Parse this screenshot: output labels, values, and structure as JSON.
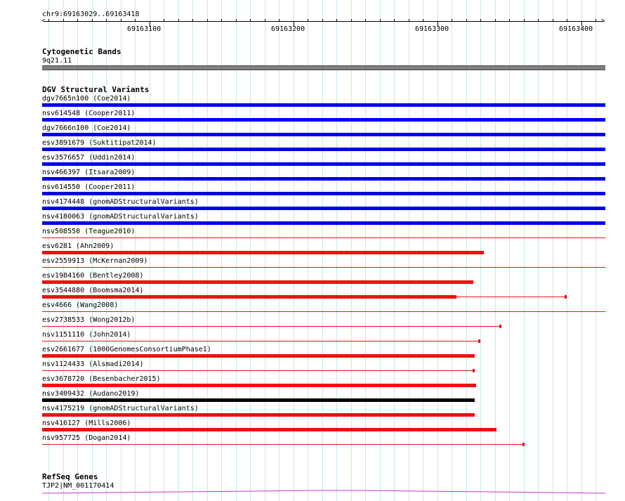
{
  "ruler": {
    "position": "chr9:69163029..69163418",
    "ticks": [
      "69163100",
      "69163200",
      "69163300",
      "69163400"
    ]
  },
  "tracks": {
    "cytobands": {
      "title": "Cytogenetic Bands",
      "band": "9q21.11",
      "color": "#808080"
    },
    "dgv": {
      "title": "DGV Structural Variants",
      "colors": {
        "gain": "#0000e6",
        "loss": "#ee1111",
        "complex": "#000000"
      },
      "features": [
        {
          "label": "dgv7665n100 (Coe2014)",
          "color": "#0000e6"
        },
        {
          "label": "nsv614548 (Cooper2011)",
          "color": "#0000e6"
        },
        {
          "label": "dgv7666n100 (Coe2014)",
          "color": "#0000e6"
        },
        {
          "label": "esv3891679 (Suktitipat2014)",
          "color": "#0000e6"
        },
        {
          "label": "esv3576657 (Uddin2014)",
          "color": "#0000e6"
        },
        {
          "label": "nsv466397 (Itsara2009)",
          "color": "#0000e6"
        },
        {
          "label": "nsv614550 (Cooper2011)",
          "color": "#0000e6"
        },
        {
          "label": "nsv4174448 (gnomADStructuralVariants)",
          "color": "#0000e6"
        },
        {
          "label": "nsv4180063 (gnomADStructuralVariants)",
          "color": "#0000e6"
        },
        {
          "label": "nsv508550 (Teague2010)",
          "color": "#ee1111"
        },
        {
          "label": "esv6281 (Ahn2009)",
          "color": "#ee1111"
        },
        {
          "label": "esv2559913 (McKernan2009)",
          "color": "#ee1111"
        },
        {
          "label": "esv1984160 (Bentley2008)",
          "color": "#ee1111"
        },
        {
          "label": "esv3544880 (Boomsma2014)",
          "color": "#ee1111"
        },
        {
          "label": "esv4666 (Wang2008)",
          "color": "#ee1111"
        },
        {
          "label": "esv2738533 (Wong2012b)",
          "color": "#ee1111"
        },
        {
          "label": "nsv1151110 (John2014)",
          "color": "#ee1111"
        },
        {
          "label": "esv2661677 (1000GenomesConsortiumPhase1)",
          "color": "#ee1111"
        },
        {
          "label": "nsv1124433 (Alsmadi2014)",
          "color": "#ee1111"
        },
        {
          "label": "esv3678720 (Besenbacher2015)",
          "color": "#ee1111"
        },
        {
          "label": "nsv3409432 (Audano2019)",
          "color": "#000000"
        },
        {
          "label": "nsv4175219 (gnomADStructuralVariants)",
          "color": "#ee1111"
        },
        {
          "label": "nsv416127 (Mills2006)",
          "color": "#ee1111"
        },
        {
          "label": "nsv957725 (Dogan2014)",
          "color": "#ee1111"
        }
      ]
    },
    "refseq": {
      "title": "RefSeq Genes",
      "gene": "TJP2|NM_001170414",
      "color": "#cc33cc"
    }
  }
}
